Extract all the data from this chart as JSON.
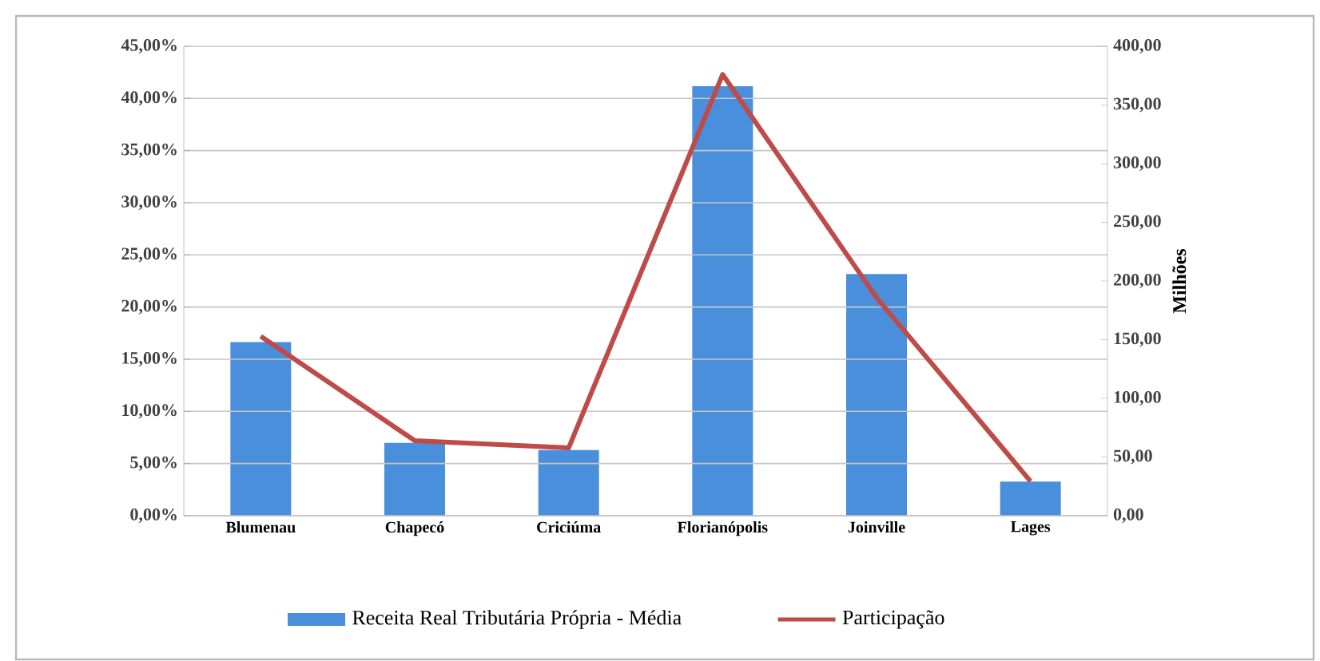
{
  "chart_data": {
    "type": "bar",
    "categories": [
      "Blumenau",
      "Chapecó",
      "Criciúma",
      "Florianópolis",
      "Joinville",
      "Lages"
    ],
    "series": [
      {
        "name": "Receita Real Tributária Própria - Média",
        "axis": "y2",
        "color": "#4a8fdb",
        "values": [
          148,
          62,
          56,
          366,
          206,
          29
        ]
      },
      {
        "name": "Participação",
        "type": "line",
        "axis": "y",
        "color": "#be4b48",
        "values": [
          17.2,
          7.2,
          6.5,
          42.3,
          20.9,
          3.3
        ]
      }
    ],
    "ylim": [
      0,
      45
    ],
    "yticks": [
      {
        "value": 0,
        "label": "0,00%"
      },
      {
        "value": 5,
        "label": "5,00%"
      },
      {
        "value": 10,
        "label": "10,00%"
      },
      {
        "value": 15,
        "label": "15,00%"
      },
      {
        "value": 20,
        "label": "20,00%"
      },
      {
        "value": 25,
        "label": "25,00%"
      },
      {
        "value": 30,
        "label": "30,00%"
      },
      {
        "value": 35,
        "label": "35,00%"
      },
      {
        "value": 40,
        "label": "40,00%"
      },
      {
        "value": 45,
        "label": "45,00%"
      }
    ],
    "y2lim": [
      0,
      400
    ],
    "y2ticks": [
      {
        "value": 0,
        "label": "0,00"
      },
      {
        "value": 50,
        "label": "50,00"
      },
      {
        "value": 100,
        "label": "100,00"
      },
      {
        "value": 150,
        "label": "150,00"
      },
      {
        "value": 200,
        "label": "200,00"
      },
      {
        "value": 250,
        "label": "250,00"
      },
      {
        "value": 300,
        "label": "300,00"
      },
      {
        "value": 350,
        "label": "350,00"
      },
      {
        "value": 400,
        "label": "400,00"
      }
    ],
    "y2label": "Milhões",
    "grid": "y",
    "legend": "bottom"
  }
}
